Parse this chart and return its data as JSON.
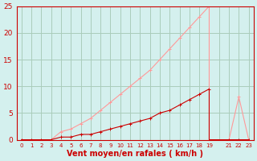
{
  "background_color": "#d4f0ee",
  "grid_color": "#aaccbb",
  "line_color_mean": "#cc0000",
  "line_color_gust": "#ff9999",
  "xlabel": "Vent moyen/en rafales ( km/h )",
  "ylim": [
    0,
    25
  ],
  "xlim": [
    -0.5,
    23.5
  ],
  "yticks": [
    0,
    5,
    10,
    15,
    20,
    25
  ],
  "xtick_labels": [
    "0",
    "1",
    "2",
    "3",
    "4",
    "5",
    "6",
    "7",
    "8",
    "9",
    "10",
    "11",
    "12",
    "13",
    "14",
    "15",
    "16",
    "17",
    "18",
    "19",
    "",
    "21",
    "22",
    "23"
  ],
  "mean_x": [
    0,
    1,
    2,
    3,
    4,
    5,
    6,
    7,
    8,
    9,
    10,
    11,
    12,
    13,
    14,
    15,
    16,
    17,
    18,
    19,
    19,
    21,
    22,
    23
  ],
  "mean_y": [
    0,
    0,
    0,
    0,
    0.5,
    0.5,
    1.0,
    1.0,
    1.5,
    2.0,
    2.5,
    3.0,
    3.5,
    4.0,
    5.0,
    5.5,
    6.5,
    7.5,
    8.5,
    9.5,
    0,
    0,
    0,
    0
  ],
  "gust_x": [
    0,
    1,
    2,
    3,
    4,
    5,
    6,
    7,
    8,
    9,
    10,
    11,
    12,
    13,
    14,
    15,
    16,
    17,
    18,
    19,
    19,
    21,
    22,
    23
  ],
  "gust_y": [
    0,
    0,
    0,
    0,
    1.5,
    2.0,
    3.0,
    4.0,
    5.5,
    7.0,
    8.5,
    10.0,
    11.5,
    13.0,
    15.0,
    17.0,
    19.0,
    21.0,
    23.0,
    25,
    0,
    0,
    8,
    0
  ]
}
